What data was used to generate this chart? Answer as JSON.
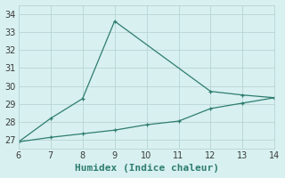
{
  "xlabel": "Humidex (Indice chaleur)",
  "xlim": [
    6,
    14
  ],
  "ylim": [
    26.5,
    34.5
  ],
  "yticks": [
    27,
    28,
    29,
    30,
    31,
    32,
    33,
    34
  ],
  "xticks": [
    6,
    7,
    8,
    9,
    10,
    11,
    12,
    13,
    14
  ],
  "line1_x": [
    6,
    7,
    8,
    9,
    12,
    13,
    14
  ],
  "line1_y": [
    26.9,
    28.2,
    29.3,
    33.6,
    29.7,
    29.5,
    29.35
  ],
  "line2_x": [
    6,
    7,
    8,
    9,
    10,
    11,
    12,
    13,
    14
  ],
  "line2_y": [
    26.9,
    27.15,
    27.35,
    27.55,
    27.85,
    28.05,
    28.75,
    29.05,
    29.35
  ],
  "line_color": "#2e7d6e",
  "bg_color": "#d8f0f0",
  "grid_color": "#b8d4d4",
  "tick_fontsize": 7,
  "xlabel_fontsize": 8
}
